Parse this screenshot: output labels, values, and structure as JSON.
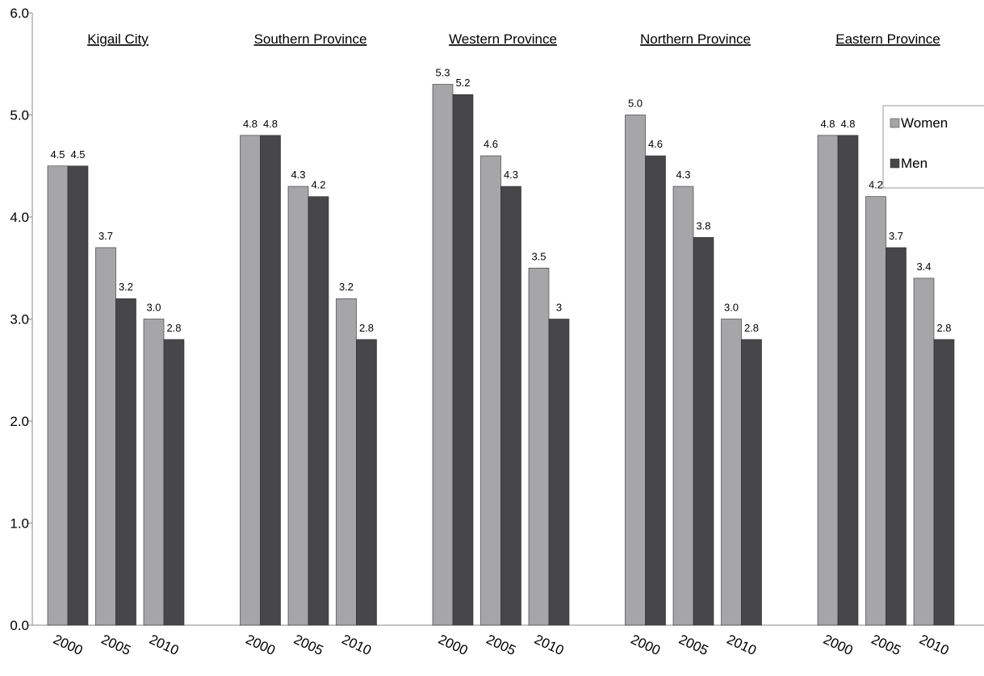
{
  "chart_data": {
    "type": "bar",
    "groups": [
      "Kigail City",
      "Southern Province",
      "Western Province",
      "Northern Province",
      "Eastern Province"
    ],
    "categories": [
      "2000",
      "2005",
      "2010"
    ],
    "series": [
      {
        "name": "Women",
        "color": "#a6a6a8",
        "values": [
          [
            4.5,
            3.7,
            3.0
          ],
          [
            4.8,
            4.3,
            3.2
          ],
          [
            5.3,
            4.6,
            3.5
          ],
          [
            5.0,
            4.3,
            3.0
          ],
          [
            4.8,
            4.2,
            3.4
          ]
        ],
        "labels": [
          [
            "4.5",
            "3.7",
            "3.0"
          ],
          [
            "4.8",
            "4.3",
            "3.2"
          ],
          [
            "5.3",
            "4.6",
            "3.5"
          ],
          [
            "5.0",
            "4.3",
            "3.0"
          ],
          [
            "4.8",
            "4.2",
            "3.4"
          ]
        ]
      },
      {
        "name": "Men",
        "color": "#47474a",
        "values": [
          [
            4.5,
            3.2,
            2.8
          ],
          [
            4.8,
            4.2,
            2.8
          ],
          [
            5.2,
            4.3,
            3.0
          ],
          [
            4.6,
            3.8,
            2.8
          ],
          [
            4.8,
            3.7,
            2.8
          ]
        ],
        "labels": [
          [
            "4.5",
            "3.2",
            "2.8"
          ],
          [
            "4.8",
            "4.2",
            "2.8"
          ],
          [
            "5.2",
            "4.3",
            "3"
          ],
          [
            "4.6",
            "3.8",
            "2.8"
          ],
          [
            "4.8",
            "3.7",
            "2.8"
          ]
        ]
      }
    ],
    "yticks": [
      "0.0",
      "1.0",
      "2.0",
      "3.0",
      "4.0",
      "5.0",
      "6.0"
    ],
    "ylim": [
      0,
      6
    ],
    "grid": false,
    "legend": "right"
  }
}
